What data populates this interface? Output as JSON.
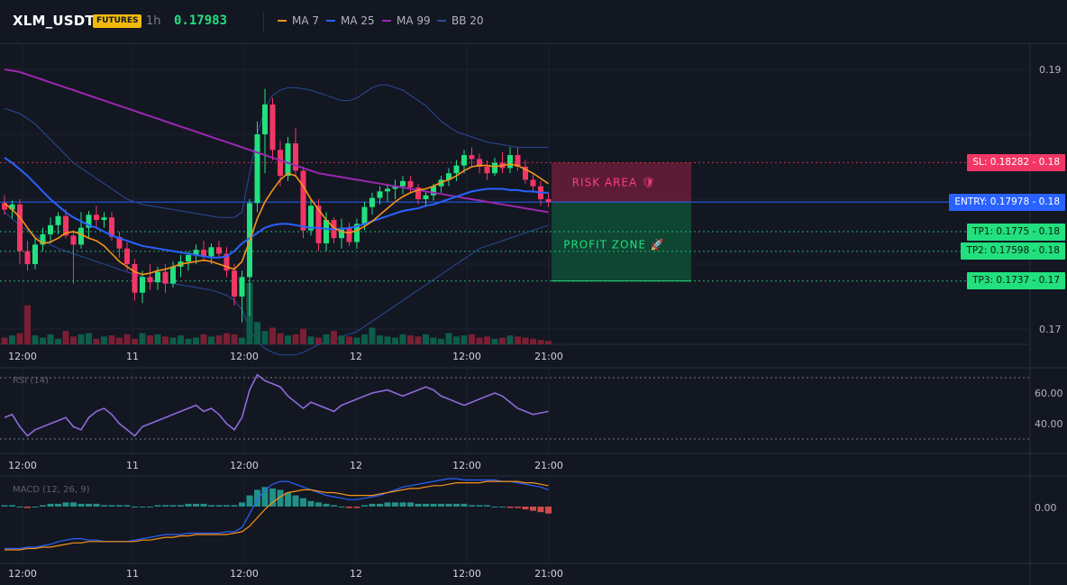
{
  "header": {
    "symbol": "XLM_USDT",
    "badge": "FUTURES",
    "timeframe": "1h",
    "price": "0.17983",
    "indicators": [
      {
        "label": "MA 7",
        "color": "#f7931a"
      },
      {
        "label": "MA 25",
        "color": "#2962ff"
      },
      {
        "label": "MA 99",
        "color": "#9c27b0"
      },
      {
        "label": "BB 20",
        "color": "#1e3a8a"
      }
    ]
  },
  "price_axis": {
    "ticks": [
      "0.19",
      "0.17"
    ]
  },
  "time_axis": {
    "ticks": [
      "12:00",
      "11",
      "12:00",
      "12",
      "12:00",
      "21:00"
    ]
  },
  "levels": {
    "sl": {
      "label": "SL: 0.18282 - 0.18",
      "value": 0.18282,
      "color": "#f23645"
    },
    "entry": {
      "label": "ENTRY: 0.17978 - 0.18",
      "value": 0.17978,
      "color": "#2962ff"
    },
    "tp1": {
      "label": "TP1: 0.1775 - 0.18",
      "value": 0.1775,
      "color": "#22e07d"
    },
    "tp2": {
      "label": "TP2: 0.17598 - 0.18",
      "value": 0.17598,
      "color": "#22e07d"
    },
    "tp3": {
      "label": "TP3: 0.1737 - 0.17",
      "value": 0.1737,
      "color": "#22e07d"
    }
  },
  "zones": {
    "risk": {
      "label": "RISK AREA 🛡"
    },
    "profit": {
      "label": "PROFIT ZONE 🚀"
    }
  },
  "rsi": {
    "title": "RSI (14)",
    "ticks": [
      "60.00",
      "40.00"
    ]
  },
  "macd": {
    "title": "MACD (12, 26, 9)",
    "ticks": [
      "0.00"
    ]
  },
  "chart_data": {
    "type": "candlestick",
    "candles": [
      [
        0.1797,
        0.1803,
        0.1788,
        0.1792
      ],
      [
        0.1792,
        0.1799,
        0.1785,
        0.1796
      ],
      [
        0.1796,
        0.18,
        0.175,
        0.176
      ],
      [
        0.176,
        0.1768,
        0.1745,
        0.175
      ],
      [
        0.175,
        0.177,
        0.1746,
        0.1765
      ],
      [
        0.1765,
        0.1778,
        0.176,
        0.1773
      ],
      [
        0.1773,
        0.1786,
        0.1766,
        0.178
      ],
      [
        0.178,
        0.179,
        0.1773,
        0.1787
      ],
      [
        0.1787,
        0.1792,
        0.177,
        0.1772
      ],
      [
        0.1772,
        0.1776,
        0.1735,
        0.1765
      ],
      [
        0.1765,
        0.179,
        0.1762,
        0.1778
      ],
      [
        0.1778,
        0.1791,
        0.177,
        0.1788
      ],
      [
        0.1788,
        0.1795,
        0.1778,
        0.1784
      ],
      [
        0.1784,
        0.179,
        0.1778,
        0.1786
      ],
      [
        0.1786,
        0.179,
        0.1768,
        0.1771
      ],
      [
        0.1771,
        0.1775,
        0.1755,
        0.1762
      ],
      [
        0.1762,
        0.1767,
        0.1745,
        0.175
      ],
      [
        0.175,
        0.1754,
        0.1722,
        0.1728
      ],
      [
        0.1728,
        0.1745,
        0.172,
        0.174
      ],
      [
        0.174,
        0.175,
        0.173,
        0.1736
      ],
      [
        0.1736,
        0.1748,
        0.173,
        0.1744
      ],
      [
        0.1744,
        0.175,
        0.1728,
        0.1735
      ],
      [
        0.1735,
        0.1752,
        0.1732,
        0.1748
      ],
      [
        0.1748,
        0.1757,
        0.174,
        0.1752
      ],
      [
        0.1752,
        0.176,
        0.1745,
        0.1757
      ],
      [
        0.1757,
        0.1765,
        0.175,
        0.1761
      ],
      [
        0.1761,
        0.1768,
        0.1752,
        0.1756
      ],
      [
        0.1756,
        0.1766,
        0.175,
        0.1763
      ],
      [
        0.1763,
        0.1768,
        0.1755,
        0.1758
      ],
      [
        0.1758,
        0.1763,
        0.174,
        0.1745
      ],
      [
        0.1745,
        0.175,
        0.1718,
        0.1725
      ],
      [
        0.1725,
        0.1745,
        0.1705,
        0.174
      ],
      [
        0.174,
        0.18,
        0.171,
        0.1797
      ],
      [
        0.1797,
        0.186,
        0.179,
        0.185
      ],
      [
        0.185,
        0.1885,
        0.182,
        0.1873
      ],
      [
        0.1873,
        0.1878,
        0.183,
        0.1838
      ],
      [
        0.1838,
        0.1845,
        0.181,
        0.1818
      ],
      [
        0.1818,
        0.1848,
        0.1814,
        0.1843
      ],
      [
        0.1843,
        0.1855,
        0.1818,
        0.1822
      ],
      [
        0.1822,
        0.1825,
        0.177,
        0.1776
      ],
      [
        0.1776,
        0.18,
        0.1772,
        0.1795
      ],
      [
        0.1795,
        0.18,
        0.176,
        0.1766
      ],
      [
        0.1766,
        0.179,
        0.176,
        0.1784
      ],
      [
        0.1784,
        0.1786,
        0.1766,
        0.177
      ],
      [
        0.177,
        0.1785,
        0.1762,
        0.1778
      ],
      [
        0.1778,
        0.1782,
        0.1764,
        0.1767
      ],
      [
        0.1767,
        0.1785,
        0.1762,
        0.1781
      ],
      [
        0.1781,
        0.1798,
        0.1776,
        0.1794
      ],
      [
        0.1794,
        0.1805,
        0.1788,
        0.1801
      ],
      [
        0.1801,
        0.181,
        0.1796,
        0.1806
      ],
      [
        0.1806,
        0.1812,
        0.1798,
        0.1808
      ],
      [
        0.1808,
        0.1815,
        0.18,
        0.181
      ],
      [
        0.181,
        0.1818,
        0.1804,
        0.1814
      ],
      [
        0.1814,
        0.1818,
        0.1805,
        0.1809
      ],
      [
        0.1809,
        0.1812,
        0.1796,
        0.18
      ],
      [
        0.18,
        0.1806,
        0.1794,
        0.1803
      ],
      [
        0.1803,
        0.1812,
        0.1799,
        0.181
      ],
      [
        0.181,
        0.1818,
        0.1805,
        0.1815
      ],
      [
        0.1815,
        0.1824,
        0.181,
        0.182
      ],
      [
        0.182,
        0.183,
        0.1814,
        0.1826
      ],
      [
        0.1826,
        0.1838,
        0.182,
        0.1834
      ],
      [
        0.1834,
        0.184,
        0.1825,
        0.1831
      ],
      [
        0.1831,
        0.1835,
        0.182,
        0.1825
      ],
      [
        0.1825,
        0.183,
        0.1815,
        0.182
      ],
      [
        0.182,
        0.1832,
        0.1818,
        0.1828
      ],
      [
        0.1828,
        0.1836,
        0.182,
        0.1824
      ],
      [
        0.1824,
        0.184,
        0.182,
        0.1834
      ],
      [
        0.1834,
        0.184,
        0.1822,
        0.1825
      ],
      [
        0.1825,
        0.183,
        0.1812,
        0.1815
      ],
      [
        0.1815,
        0.182,
        0.1805,
        0.181
      ],
      [
        0.181,
        0.1814,
        0.1795,
        0.18
      ],
      [
        0.18,
        0.1805,
        0.1794,
        0.1798
      ]
    ],
    "volume": [
      6,
      8,
      10,
      35,
      8,
      6,
      9,
      5,
      12,
      7,
      9,
      10,
      5,
      7,
      8,
      6,
      9,
      5,
      10,
      8,
      9,
      7,
      6,
      8,
      5,
      6,
      9,
      7,
      8,
      10,
      9,
      6,
      55,
      20,
      12,
      15,
      10,
      8,
      9,
      14,
      7,
      6,
      9,
      12,
      8,
      7,
      6,
      9,
      15,
      8,
      7,
      6,
      9,
      8,
      7,
      9,
      6,
      5,
      10,
      7,
      8,
      9,
      6,
      7,
      5,
      6,
      8,
      7,
      6,
      5,
      4,
      3
    ],
    "ma7": [
      0.1797,
      0.1792,
      0.1786,
      0.1778,
      0.177,
      0.1766,
      0.1767,
      0.177,
      0.1774,
      0.1775,
      0.1773,
      0.177,
      0.1768,
      0.1764,
      0.1758,
      0.1752,
      0.1748,
      0.1744,
      0.1742,
      0.1743,
      0.1745,
      0.1746,
      0.1748,
      0.175,
      0.1751,
      0.1752,
      0.1753,
      0.1752,
      0.175,
      0.1748,
      0.1746,
      0.1752,
      0.1768,
      0.1785,
      0.1798,
      0.1807,
      0.1815,
      0.182,
      0.1818,
      0.181,
      0.18,
      0.1792,
      0.1784,
      0.1778,
      0.1775,
      0.1774,
      0.1776,
      0.1779,
      0.1783,
      0.1788,
      0.1793,
      0.1798,
      0.1802,
      0.1805,
      0.1807,
      0.1808,
      0.181,
      0.1813,
      0.1815,
      0.1818,
      0.1822,
      0.1825,
      0.1826,
      0.1826,
      0.1825,
      0.1826,
      0.1827,
      0.1826,
      0.1823,
      0.182,
      0.1816,
      0.1812
    ],
    "ma25": [
      0.1832,
      0.1828,
      0.1823,
      0.1818,
      0.1812,
      0.1806,
      0.18,
      0.1795,
      0.179,
      0.1786,
      0.1783,
      0.178,
      0.1778,
      0.1775,
      0.1772,
      0.177,
      0.1768,
      0.1766,
      0.1764,
      0.1763,
      0.1762,
      0.1761,
      0.176,
      0.1759,
      0.1758,
      0.1757,
      0.1756,
      0.1755,
      0.1755,
      0.1756,
      0.176,
      0.1766,
      0.177,
      0.1774,
      0.1778,
      0.178,
      0.1781,
      0.1781,
      0.178,
      0.1779,
      0.1778,
      0.1778,
      0.1777,
      0.1777,
      0.1777,
      0.1778,
      0.1779,
      0.1781,
      0.1783,
      0.1785,
      0.1787,
      0.1789,
      0.1791,
      0.1792,
      0.1793,
      0.1795,
      0.1796,
      0.1798,
      0.18,
      0.1802,
      0.1804,
      0.1806,
      0.1807,
      0.1808,
      0.1808,
      0.1808,
      0.1807,
      0.1807,
      0.1806,
      0.1806,
      0.1805,
      0.1805
    ],
    "ma99": [
      0.19,
      0.1899,
      0.1898,
      0.1896,
      0.1894,
      0.1892,
      0.189,
      0.1888,
      0.1886,
      0.1884,
      0.1882,
      0.188,
      0.1878,
      0.1876,
      0.1874,
      0.1872,
      0.187,
      0.1868,
      0.1866,
      0.1864,
      0.1862,
      0.186,
      0.1858,
      0.1856,
      0.1854,
      0.1852,
      0.185,
      0.1848,
      0.1846,
      0.1844,
      0.1842,
      0.184,
      0.1838,
      0.1836,
      0.1834,
      0.1832,
      0.183,
      0.1828,
      0.1826,
      0.1824,
      0.1822,
      0.182,
      0.1819,
      0.1818,
      0.1817,
      0.1816,
      0.1815,
      0.1814,
      0.1813,
      0.1812,
      0.1811,
      0.181,
      0.1809,
      0.1808,
      0.1807,
      0.1806,
      0.1805,
      0.1804,
      0.1803,
      0.1802,
      0.1801,
      0.18,
      0.1799,
      0.1798,
      0.1797,
      0.1796,
      0.1795,
      0.1794,
      0.1793,
      0.1792,
      0.1791,
      0.179
    ],
    "bb_upper": [
      0.187,
      0.1868,
      0.1866,
      0.1862,
      0.1858,
      0.1852,
      0.1846,
      0.184,
      0.1834,
      0.1828,
      0.1824,
      0.182,
      0.1816,
      0.1812,
      0.1808,
      0.1804,
      0.18,
      0.1798,
      0.1796,
      0.1795,
      0.1794,
      0.1793,
      0.1792,
      0.1791,
      0.179,
      0.1789,
      0.1788,
      0.1787,
      0.1786,
      0.1786,
      0.1786,
      0.179,
      0.182,
      0.185,
      0.187,
      0.188,
      0.1884,
      0.1886,
      0.1886,
      0.1885,
      0.1884,
      0.1882,
      0.188,
      0.1878,
      0.1876,
      0.1876,
      0.1878,
      0.1882,
      0.1886,
      0.1888,
      0.1888,
      0.1886,
      0.1884,
      0.188,
      0.1876,
      0.1872,
      0.1866,
      0.186,
      0.1856,
      0.1852,
      0.185,
      0.1848,
      0.1846,
      0.1844,
      0.1843,
      0.1842,
      0.1841,
      0.184,
      0.184,
      0.184,
      0.184,
      0.184
    ],
    "bb_lower": [
      0.179,
      0.1785,
      0.178,
      0.1776,
      0.1772,
      0.1768,
      0.1765,
      0.1762,
      0.176,
      0.1758,
      0.1756,
      0.1754,
      0.1752,
      0.175,
      0.1748,
      0.1746,
      0.1744,
      0.1742,
      0.174,
      0.1738,
      0.1737,
      0.1736,
      0.1735,
      0.1734,
      0.1733,
      0.1732,
      0.1731,
      0.173,
      0.1728,
      0.1726,
      0.1722,
      0.1715,
      0.17,
      0.169,
      0.1685,
      0.1682,
      0.168,
      0.168,
      0.168,
      0.1682,
      0.1685,
      0.1688,
      0.169,
      0.1692,
      0.1694,
      0.1696,
      0.1698,
      0.1702,
      0.1706,
      0.171,
      0.1714,
      0.1718,
      0.1722,
      0.1726,
      0.173,
      0.1734,
      0.1738,
      0.1742,
      0.1746,
      0.175,
      0.1754,
      0.1758,
      0.1762,
      0.1764,
      0.1766,
      0.1768,
      0.177,
      0.1772,
      0.1774,
      0.1776,
      0.1778,
      0.178
    ],
    "rsi": [
      44,
      46,
      38,
      32,
      36,
      38,
      40,
      42,
      44,
      38,
      36,
      44,
      48,
      50,
      46,
      40,
      36,
      32,
      38,
      40,
      42,
      44,
      46,
      48,
      50,
      52,
      48,
      50,
      46,
      40,
      36,
      44,
      62,
      72,
      68,
      66,
      64,
      58,
      54,
      50,
      54,
      52,
      50,
      48,
      52,
      54,
      56,
      58,
      60,
      61,
      62,
      60,
      58,
      60,
      62,
      64,
      62,
      58,
      56,
      54,
      52,
      54,
      56,
      58,
      60,
      58,
      54,
      50,
      48,
      46,
      47,
      48
    ],
    "macd_hist": [
      1,
      1,
      0,
      -1,
      0,
      1,
      2,
      2,
      3,
      3,
      2,
      2,
      2,
      1,
      1,
      1,
      1,
      0,
      0,
      0,
      1,
      1,
      1,
      1,
      2,
      2,
      2,
      1,
      1,
      1,
      1,
      3,
      8,
      12,
      14,
      13,
      12,
      10,
      8,
      6,
      4,
      3,
      2,
      1,
      0,
      -1,
      -1,
      1,
      2,
      2,
      3,
      3,
      3,
      3,
      2,
      2,
      2,
      2,
      2,
      2,
      2,
      1,
      1,
      1,
      0,
      0,
      -1,
      -1,
      -2,
      -3,
      -4,
      -5
    ],
    "macd_line": [
      -30,
      -30,
      -30,
      -29,
      -29,
      -28,
      -27,
      -25,
      -24,
      -23,
      -23,
      -24,
      -24,
      -25,
      -25,
      -25,
      -25,
      -24,
      -23,
      -22,
      -21,
      -20,
      -20,
      -20,
      -19,
      -19,
      -19,
      -19,
      -19,
      -18,
      -18,
      -15,
      -5,
      5,
      12,
      16,
      18,
      18,
      16,
      14,
      12,
      10,
      8,
      7,
      6,
      5,
      5,
      6,
      7,
      8,
      10,
      12,
      14,
      15,
      16,
      17,
      18,
      19,
      20,
      20,
      19,
      19,
      19,
      19,
      19,
      18,
      18,
      17,
      16,
      15,
      14,
      12
    ],
    "macd_signal": [
      -31,
      -31,
      -31,
      -30,
      -30,
      -29,
      -29,
      -28,
      -27,
      -26,
      -26,
      -25,
      -25,
      -25,
      -25,
      -25,
      -25,
      -25,
      -24,
      -24,
      -23,
      -22,
      -22,
      -21,
      -21,
      -20,
      -20,
      -20,
      -20,
      -20,
      -19,
      -18,
      -14,
      -8,
      -2,
      3,
      7,
      10,
      11,
      12,
      12,
      11,
      10,
      10,
      9,
      8,
      8,
      8,
      8,
      9,
      10,
      11,
      12,
      13,
      13,
      14,
      15,
      15,
      16,
      17,
      17,
      17,
      17,
      18,
      18,
      18,
      18,
      18,
      17,
      17,
      16,
      15
    ]
  }
}
